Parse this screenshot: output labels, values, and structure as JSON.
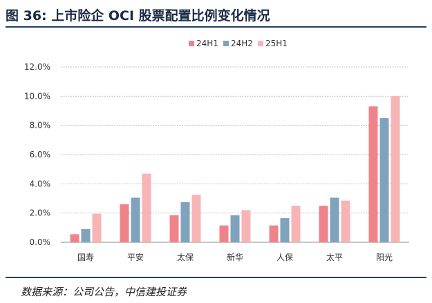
{
  "figure": {
    "title": "图 36:  上市险企 OCI 股票配置比例变化情况",
    "source": "数据来源：公司公告，中信建投证券"
  },
  "colors": {
    "rule": "#1f3e66",
    "grid": "#bfbfbf",
    "series": [
      "#f0838a",
      "#7fa3bd",
      "#f8b4b5"
    ]
  },
  "chart_data": {
    "type": "bar",
    "title": "上市险企 OCI 股票配置比例变化情况",
    "xlabel": "",
    "ylabel": "",
    "categories": [
      "国寿",
      "平安",
      "太保",
      "新华",
      "人保",
      "太平",
      "阳光"
    ],
    "series": [
      {
        "name": "24H1",
        "values": [
          0.55,
          2.6,
          1.85,
          1.15,
          1.15,
          2.5,
          9.3
        ]
      },
      {
        "name": "24H2",
        "values": [
          0.9,
          3.05,
          2.75,
          1.85,
          1.65,
          3.05,
          8.5
        ]
      },
      {
        "name": "25H1",
        "values": [
          1.95,
          4.7,
          3.25,
          2.2,
          2.5,
          2.85,
          10.0
        ]
      }
    ],
    "ylim": [
      0,
      12
    ],
    "yticks": [
      "0.0%",
      "2.0%",
      "4.0%",
      "6.0%",
      "8.0%",
      "10.0%",
      "12.0%"
    ],
    "grid": true,
    "legend_position": "top-center"
  }
}
